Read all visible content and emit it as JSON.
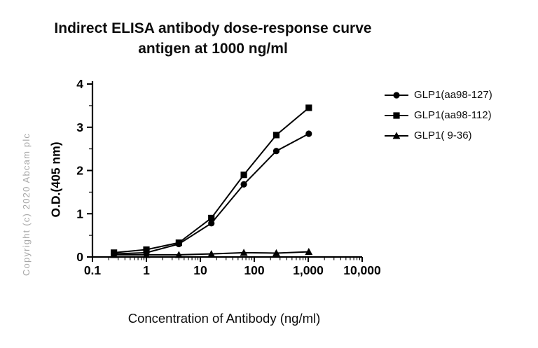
{
  "watermark": "Copyright (c) 2020 Abcam plc",
  "chart_data": {
    "type": "line",
    "title": "Indirect ELISA antibody dose-response curve antigen at 1000 ng/ml",
    "title_lines": [
      "Indirect ELISA antibody dose-response curve",
      "antigen at 1000 ng/ml"
    ],
    "xlabel": "Concentration of Antibody (ng/ml)",
    "ylabel": "O.D.(405 nm)",
    "x_scale": "log10",
    "xlim": [
      0.1,
      10000
    ],
    "ylim": [
      0,
      4
    ],
    "x_major_ticks": [
      0.1,
      1,
      10,
      100,
      1000,
      10000
    ],
    "x_tick_labels": [
      "0.1",
      "1",
      "10",
      "100",
      "1,000",
      "10,000"
    ],
    "y_major_ticks": [
      0,
      1,
      2,
      3,
      4
    ],
    "y_minor_ticks": [
      0.5,
      1.5,
      2.5,
      3.5
    ],
    "grid": false,
    "legend_position": "right",
    "line_color": "#000000",
    "x": [
      0.25,
      1,
      4,
      16,
      64,
      256,
      1024
    ],
    "series": [
      {
        "name": "GLP1(aa98-127)",
        "marker": "circle",
        "values": [
          0.07,
          0.1,
          0.3,
          0.78,
          1.68,
          2.45,
          2.85
        ]
      },
      {
        "name": "GLP1(aa98-112)",
        "marker": "square",
        "values": [
          0.1,
          0.17,
          0.33,
          0.9,
          1.9,
          2.82,
          3.45
        ]
      },
      {
        "name": "GLP1( 9-36)",
        "marker": "triangle",
        "values": [
          0.05,
          0.05,
          0.05,
          0.07,
          0.1,
          0.09,
          0.12
        ]
      }
    ]
  }
}
